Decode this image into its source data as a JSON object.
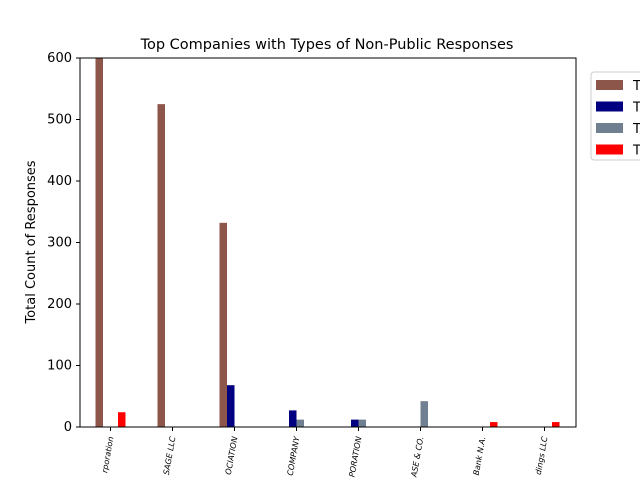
{
  "chart_data": {
    "type": "bar",
    "title": "Top Companies with Types of Non-Public Responses",
    "xlabel": "",
    "ylabel": "Total Count of Responses",
    "ylim": [
      0,
      600
    ],
    "yticks": [
      0,
      100,
      200,
      300,
      400,
      500,
      600
    ],
    "categories": [
      "rporation",
      "SAGE LLC",
      "OCIATION",
      "COMPANY",
      "PORATION",
      "ASE & CO.",
      "Bank N.A.",
      "dings LLC"
    ],
    "series": [
      {
        "name": "T",
        "color": "#8c564b",
        "values": [
          600,
          525,
          332,
          0,
          0,
          0,
          0,
          0
        ]
      },
      {
        "name": "T",
        "color": "#000080",
        "values": [
          0,
          0,
          68,
          27,
          12,
          0,
          0,
          0
        ]
      },
      {
        "name": "T",
        "color": "#708090",
        "values": [
          0,
          0,
          0,
          12,
          12,
          42,
          0,
          0
        ]
      },
      {
        "name": "T",
        "color": "#ff0000",
        "values": [
          24,
          0,
          0,
          0,
          0,
          0,
          8,
          8
        ]
      }
    ],
    "legend_position": "right (clipped)",
    "grid": false
  }
}
